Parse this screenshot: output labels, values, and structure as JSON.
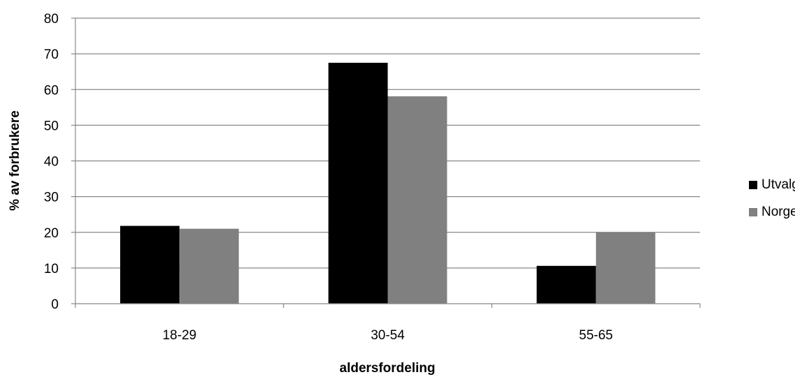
{
  "chart_data": {
    "type": "bar",
    "title": "",
    "xlabel": "aldersfordeling",
    "ylabel": "% av forbrukere",
    "categories": [
      "18-29",
      "30-54",
      "55-65"
    ],
    "ylim": [
      0,
      80
    ],
    "yticks": [
      0,
      10,
      20,
      30,
      40,
      50,
      60,
      70,
      80
    ],
    "grid": true,
    "legend_position": "right",
    "series": [
      {
        "name": "Utvalg",
        "color": "#000000",
        "values": [
          21.8,
          67.5,
          10.6
        ]
      },
      {
        "name": "Norge",
        "color": "#808080",
        "values": [
          21.0,
          58.1,
          20.0
        ]
      }
    ]
  }
}
